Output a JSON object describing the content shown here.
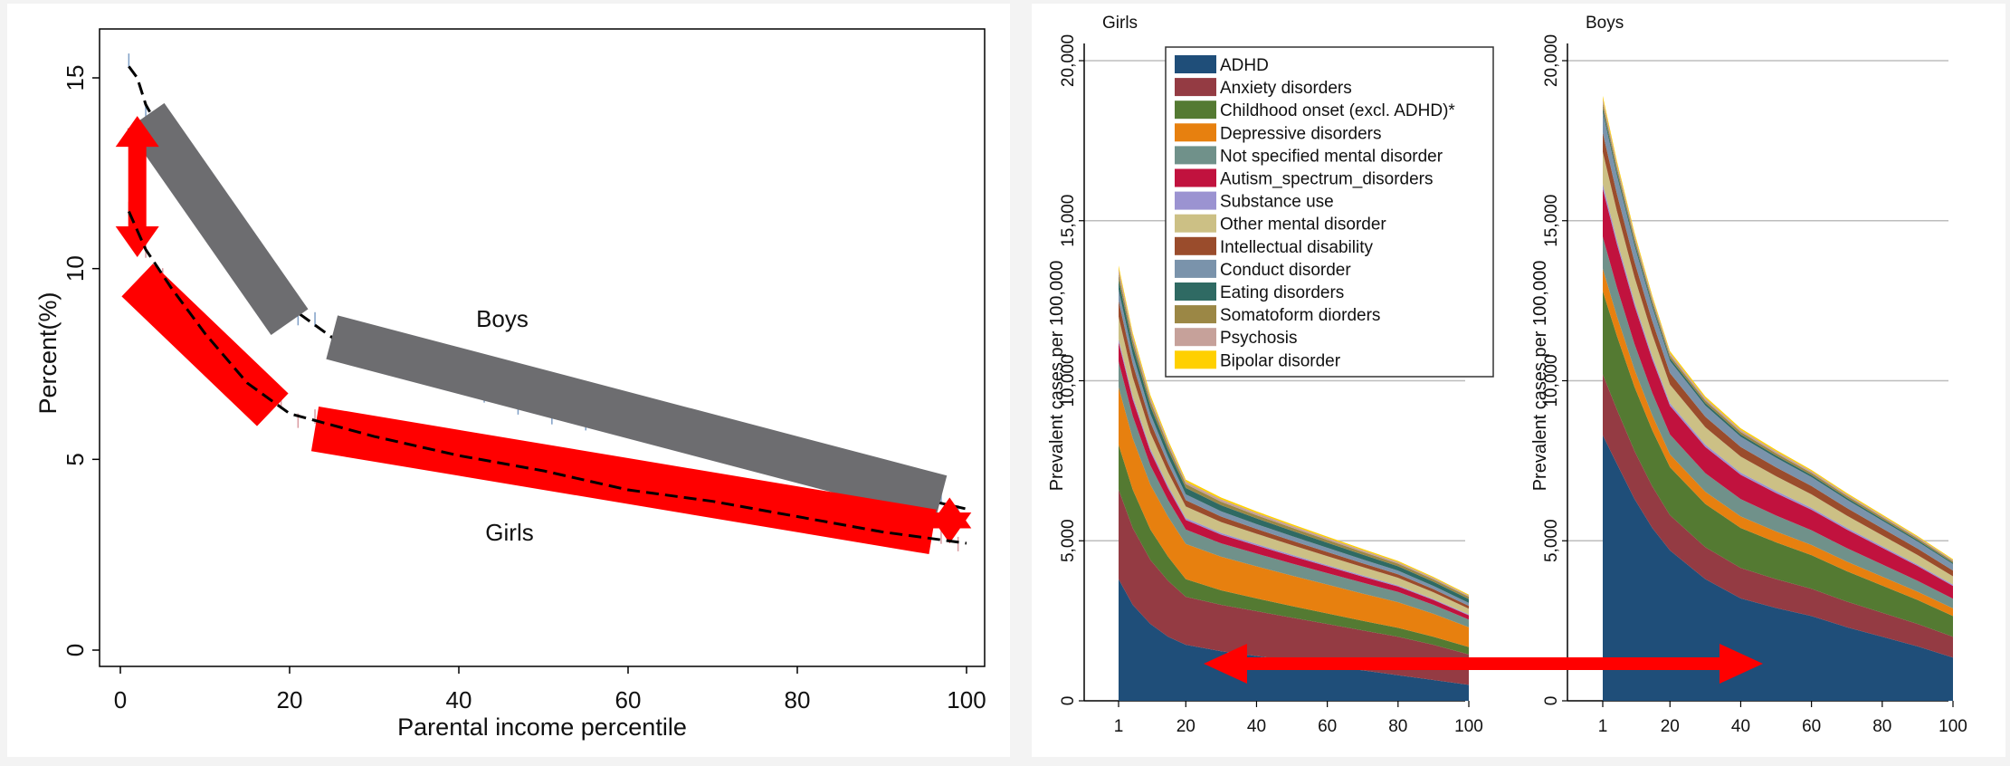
{
  "chart_data": [
    {
      "type": "line",
      "xlabel": "Parental income percentile",
      "ylabel": "Percent(%)",
      "xlim": [
        0,
        100
      ],
      "ylim": [
        0,
        16
      ],
      "xticks": [
        0,
        20,
        40,
        60,
        80,
        100
      ],
      "yticks": [
        0,
        5,
        10,
        15
      ],
      "grid": false,
      "series": [
        {
          "name": "Boys",
          "color": "#6d6d70",
          "points": [
            [
              1,
              15.3
            ],
            [
              2,
              15.0
            ],
            [
              3,
              14.3
            ],
            [
              5,
              13.5
            ],
            [
              8,
              12.5
            ],
            [
              12,
              11.0
            ],
            [
              16,
              9.8
            ],
            [
              20,
              9.0
            ],
            [
              25,
              8.2
            ],
            [
              30,
              7.8
            ],
            [
              40,
              7.0
            ],
            [
              50,
              6.3
            ],
            [
              60,
              5.8
            ],
            [
              70,
              5.3
            ],
            [
              80,
              4.8
            ],
            [
              90,
              4.2
            ],
            [
              100,
              3.7
            ]
          ],
          "segments": [
            [
              [
                3,
                14.0
              ],
              [
                20,
                8.6
              ]
            ],
            [
              [
                25,
                8.2
              ],
              [
                97,
                4.0
              ]
            ]
          ]
        },
        {
          "name": "Girls",
          "color": "#ff0000",
          "points": [
            [
              1,
              11.5
            ],
            [
              3,
              10.5
            ],
            [
              6,
              9.5
            ],
            [
              10,
              8.3
            ],
            [
              15,
              7.0
            ],
            [
              20,
              6.2
            ],
            [
              25,
              5.9
            ],
            [
              30,
              5.6
            ],
            [
              40,
              5.1
            ],
            [
              50,
              4.7
            ],
            [
              60,
              4.2
            ],
            [
              70,
              3.9
            ],
            [
              80,
              3.5
            ],
            [
              90,
              3.1
            ],
            [
              100,
              2.8
            ]
          ],
          "segments": [
            [
              [
                2,
                9.7
              ],
              [
                18,
                6.3
              ]
            ],
            [
              [
                23,
                5.8
              ],
              [
                96,
                3.1
              ]
            ]
          ]
        }
      ]
    },
    {
      "type": "area",
      "title": "Girls",
      "ylabel": "Prevalent cases per 100,000",
      "ylim": [
        0,
        20000
      ],
      "yticks": [
        0,
        5000,
        10000,
        15000,
        20000
      ],
      "ytick_labels": [
        "0",
        "5,000",
        "10,000",
        "15,000",
        "20,000"
      ],
      "xlim": [
        1,
        100
      ],
      "xticks": [
        1,
        20,
        40,
        60,
        80,
        100
      ],
      "grid": true,
      "x": [
        1,
        5,
        10,
        15,
        20,
        30,
        40,
        50,
        60,
        70,
        80,
        90,
        100
      ],
      "series": [
        {
          "name": "ADHD",
          "values": [
            3800,
            3000,
            2400,
            2000,
            1750,
            1550,
            1400,
            1250,
            1100,
            950,
            800,
            650,
            500
          ]
        },
        {
          "name": "Anxiety disorders",
          "values": [
            2800,
            2400,
            2000,
            1750,
            1500,
            1450,
            1400,
            1350,
            1300,
            1250,
            1200,
            1100,
            950
          ]
        },
        {
          "name": "Childhood onset (excl. ADHD)*",
          "values": [
            1400,
            1200,
            950,
            750,
            550,
            450,
            400,
            360,
            330,
            300,
            280,
            250,
            230
          ]
        },
        {
          "name": "Depressive disorders",
          "values": [
            1800,
            1600,
            1400,
            1250,
            1100,
            1050,
            1000,
            950,
            900,
            850,
            800,
            720,
            620
          ]
        },
        {
          "name": "Not specified mental disorder",
          "values": [
            800,
            700,
            600,
            520,
            450,
            420,
            400,
            380,
            360,
            340,
            320,
            280,
            240
          ]
        },
        {
          "name": "Autism_spectrum_disorders",
          "values": [
            600,
            520,
            440,
            370,
            300,
            270,
            250,
            230,
            210,
            190,
            170,
            150,
            130
          ]
        },
        {
          "name": "Substance use",
          "values": [
            100,
            90,
            80,
            70,
            60,
            55,
            50,
            45,
            40,
            38,
            35,
            30,
            28
          ]
        },
        {
          "name": "Other mental disorder",
          "values": [
            700,
            600,
            500,
            430,
            360,
            340,
            320,
            300,
            280,
            260,
            240,
            210,
            180
          ]
        },
        {
          "name": "Intellectual disability",
          "values": [
            500,
            420,
            340,
            270,
            200,
            170,
            150,
            140,
            130,
            120,
            110,
            100,
            90
          ]
        },
        {
          "name": "Conduct disorder",
          "values": [
            350,
            300,
            250,
            210,
            180,
            165,
            150,
            140,
            130,
            120,
            110,
            100,
            90
          ]
        },
        {
          "name": "Eating disorders",
          "values": [
            300,
            270,
            240,
            220,
            200,
            190,
            180,
            170,
            160,
            150,
            140,
            130,
            120
          ]
        },
        {
          "name": "Somatoform diorders",
          "values": [
            200,
            180,
            160,
            140,
            120,
            110,
            100,
            95,
            90,
            85,
            80,
            75,
            70
          ]
        },
        {
          "name": "Psychosis",
          "values": [
            150,
            130,
            110,
            95,
            80,
            75,
            70,
            65,
            60,
            55,
            50,
            45,
            40
          ]
        },
        {
          "name": "Bipolar disorder",
          "values": [
            100,
            90,
            80,
            70,
            60,
            55,
            50,
            45,
            40,
            37,
            35,
            32,
            30
          ]
        }
      ]
    },
    {
      "type": "area",
      "title": "Boys",
      "ylabel": "Prevalent cases per 100,000",
      "ylim": [
        0,
        20000
      ],
      "yticks": [
        0,
        5000,
        10000,
        15000,
        20000
      ],
      "ytick_labels": [
        "0",
        "5,000",
        "10,000",
        "15,000",
        "20,000"
      ],
      "xlim": [
        1,
        100
      ],
      "xticks": [
        1,
        20,
        40,
        60,
        80,
        100
      ],
      "grid": true,
      "x": [
        1,
        5,
        10,
        15,
        20,
        30,
        40,
        50,
        60,
        70,
        80,
        90,
        100
      ],
      "series": [
        {
          "name": "ADHD",
          "values": [
            8300,
            7400,
            6300,
            5400,
            4700,
            3800,
            3200,
            2900,
            2650,
            2300,
            2000,
            1700,
            1350
          ]
        },
        {
          "name": "Anxiety disorders",
          "values": [
            1900,
            1700,
            1500,
            1300,
            1100,
            1000,
            950,
            900,
            850,
            800,
            750,
            700,
            650
          ]
        },
        {
          "name": "Childhood onset (excl. ADHD)*",
          "values": [
            2600,
            2300,
            2000,
            1750,
            1500,
            1350,
            1250,
            1150,
            1050,
            950,
            850,
            750,
            650
          ]
        },
        {
          "name": "Depressive disorders",
          "values": [
            700,
            620,
            540,
            470,
            400,
            380,
            360,
            340,
            320,
            300,
            280,
            260,
            240
          ]
        },
        {
          "name": "Not specified mental disorder",
          "values": [
            1000,
            900,
            800,
            700,
            620,
            580,
            540,
            500,
            460,
            420,
            380,
            340,
            300
          ]
        },
        {
          "name": "Autism_spectrum_disorders",
          "values": [
            1500,
            1350,
            1200,
            1050,
            900,
            820,
            760,
            700,
            640,
            580,
            520,
            460,
            400
          ]
        },
        {
          "name": "Substance use",
          "values": [
            150,
            130,
            110,
            95,
            80,
            75,
            70,
            65,
            60,
            55,
            50,
            45,
            40
          ]
        },
        {
          "name": "Other mental disorder",
          "values": [
            1000,
            900,
            780,
            680,
            580,
            540,
            500,
            460,
            420,
            380,
            340,
            300,
            260
          ]
        },
        {
          "name": "Intellectual disability",
          "values": [
            600,
            540,
            480,
            420,
            360,
            330,
            300,
            280,
            260,
            240,
            220,
            200,
            180
          ]
        },
        {
          "name": "Conduct disorder",
          "values": [
            650,
            580,
            510,
            440,
            380,
            350,
            320,
            300,
            280,
            260,
            240,
            220,
            200
          ]
        },
        {
          "name": "Eating disorders",
          "values": [
            120,
            110,
            100,
            90,
            80,
            75,
            70,
            65,
            60,
            55,
            50,
            45,
            40
          ]
        },
        {
          "name": "Somatoform diorders",
          "values": [
            150,
            135,
            120,
            105,
            90,
            85,
            80,
            75,
            70,
            65,
            60,
            55,
            50
          ]
        },
        {
          "name": "Psychosis",
          "values": [
            130,
            115,
            100,
            88,
            75,
            70,
            65,
            60,
            55,
            50,
            45,
            40,
            35
          ]
        },
        {
          "name": "Bipolar disorder",
          "values": [
            100,
            90,
            80,
            70,
            60,
            55,
            50,
            45,
            40,
            37,
            35,
            32,
            30
          ]
        }
      ]
    }
  ],
  "legend": {
    "placement": "top-left",
    "colors": [
      "#1f4e79",
      "#943b43",
      "#547a32",
      "#e7800f",
      "#70918a",
      "#c1123e",
      "#9b93d1",
      "#ccc085",
      "#9a4c2c",
      "#7a93ab",
      "#2f6a63",
      "#9b8745",
      "#c6a19a",
      "#ffd000"
    ]
  }
}
